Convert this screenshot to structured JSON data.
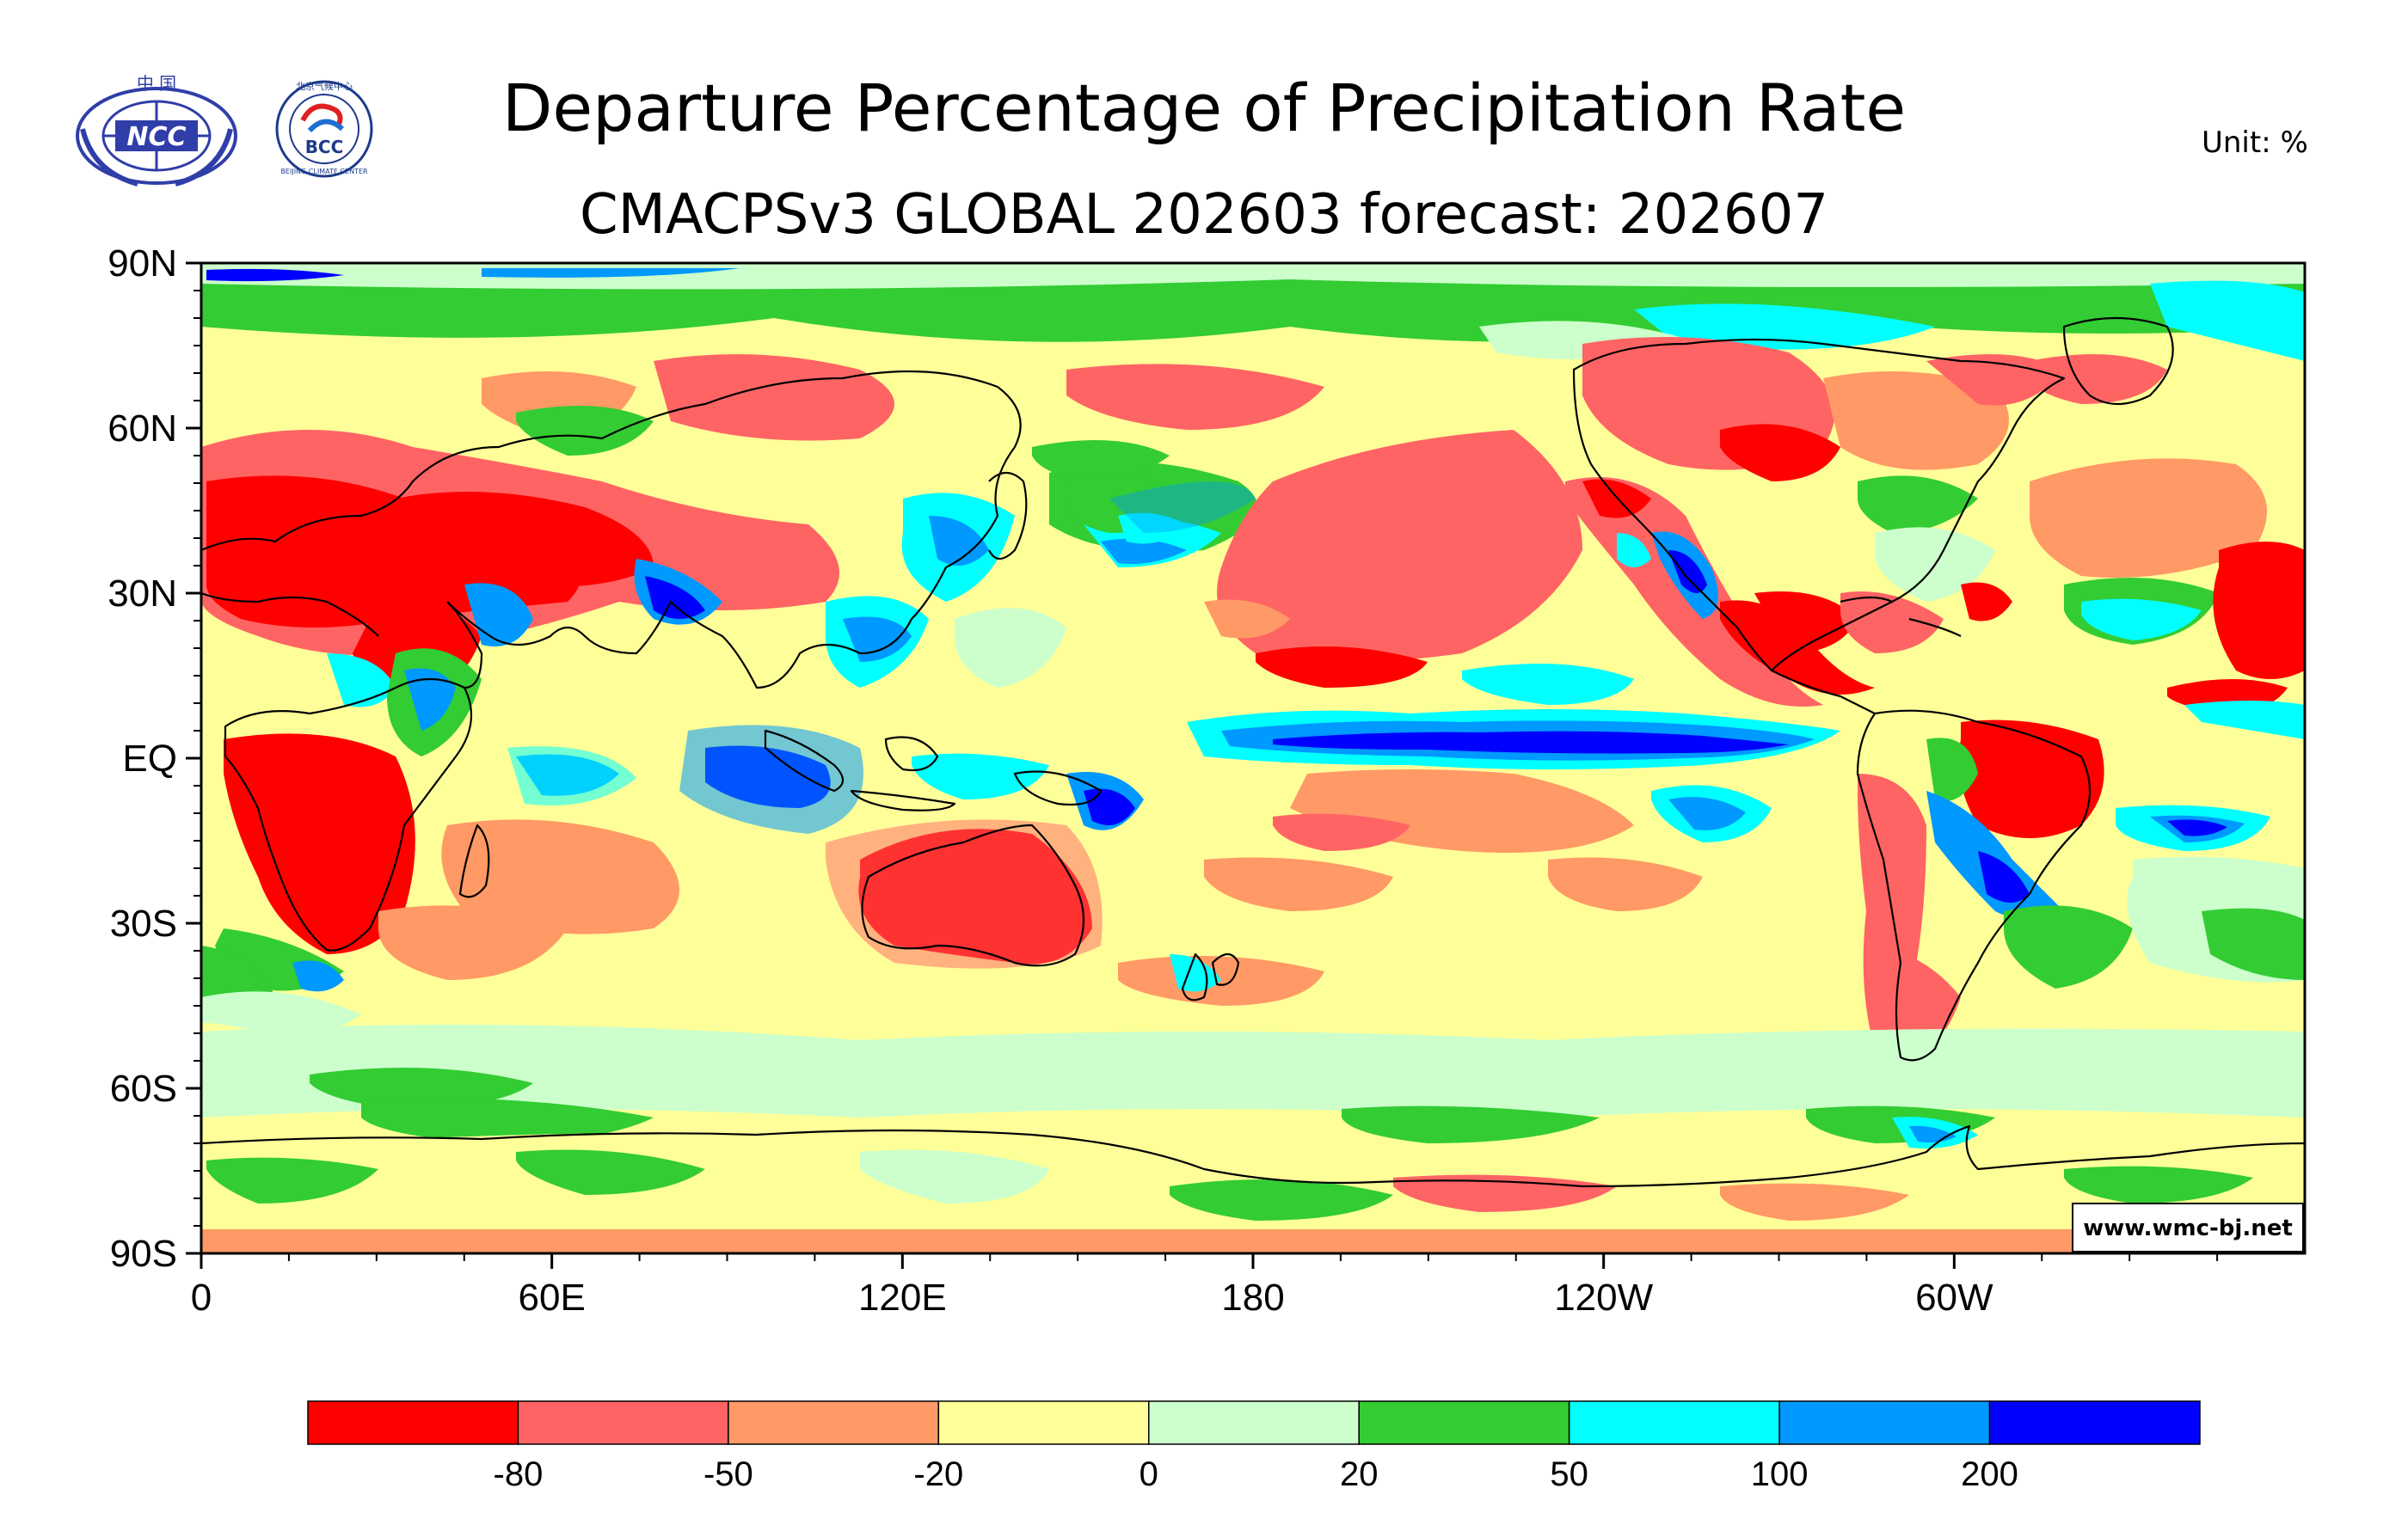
{
  "header": {
    "title": "Departure Percentage of Precipitation Rate",
    "subtitle": "CMACPSv3 GLOBAL 202603 forecast: 202607",
    "unit": "Unit:  %"
  },
  "logos": {
    "ncc": {
      "top_text": "中  国",
      "emblem_text": "NCC"
    },
    "bcc": {
      "top_text": "北京气候中心",
      "emblem_text": "BCC",
      "ring_text": "BEIJING CLIMATE CENTER"
    }
  },
  "map": {
    "lat_labels": [
      "90N",
      "60N",
      "30N",
      "EQ",
      "30S",
      "60S",
      "90S"
    ],
    "lon_labels": [
      "0",
      "60E",
      "120E",
      "180",
      "120W",
      "60W"
    ],
    "watermark": "www.wmc-bj.net"
  },
  "legend": {
    "colors": [
      "#ff0000",
      "#ff6464",
      "#ff9966",
      "#ffff99",
      "#ccffcc",
      "#33cc33",
      "#00ffff",
      "#0099ff",
      "#0000ff"
    ],
    "tick_labels": [
      "-80",
      "-50",
      "-20",
      "0",
      "20",
      "50",
      "100",
      "200"
    ]
  }
}
